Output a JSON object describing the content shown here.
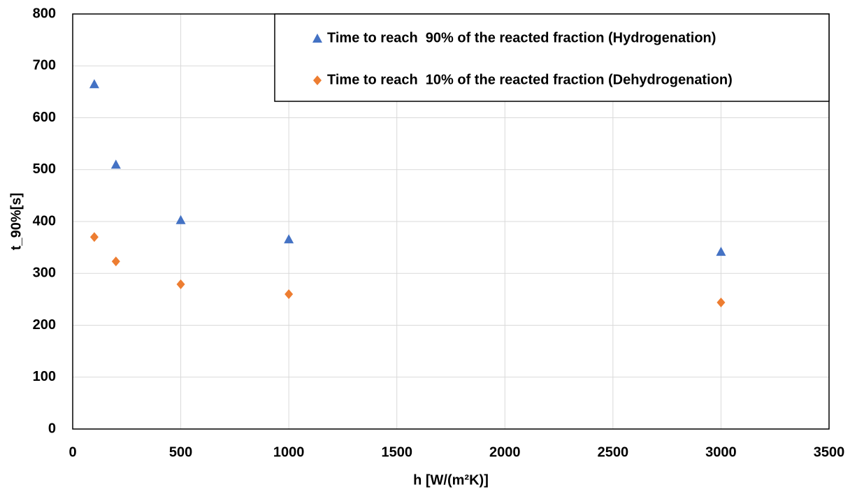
{
  "chart_data": {
    "type": "scatter",
    "x_label": "h [W/(m²K)]",
    "y_label": "t_90%[s]",
    "xlim": [
      0,
      3500
    ],
    "xticks": [
      0,
      500,
      1000,
      1500,
      2000,
      2500,
      3000,
      3500
    ],
    "ylim": [
      0,
      800
    ],
    "yticks": [
      0,
      100,
      200,
      300,
      400,
      500,
      600,
      700,
      800
    ],
    "grid": true,
    "legend": "top-right",
    "series": [
      {
        "name": "Time to reach  90% of the reacted fraction (Hydrogenation)",
        "color": "#4472c4",
        "marker": "triangle",
        "x": [
          100,
          200,
          500,
          1000,
          3000
        ],
        "values": [
          665,
          510,
          403,
          366,
          342
        ]
      },
      {
        "name": "Time to reach  10% of the reacted fraction (Dehydrogenation)",
        "color": "#ed7d31",
        "marker": "diamond",
        "x": [
          100,
          200,
          500,
          1000,
          3000
        ],
        "values": [
          370,
          323,
          279,
          260,
          244
        ]
      }
    ]
  }
}
